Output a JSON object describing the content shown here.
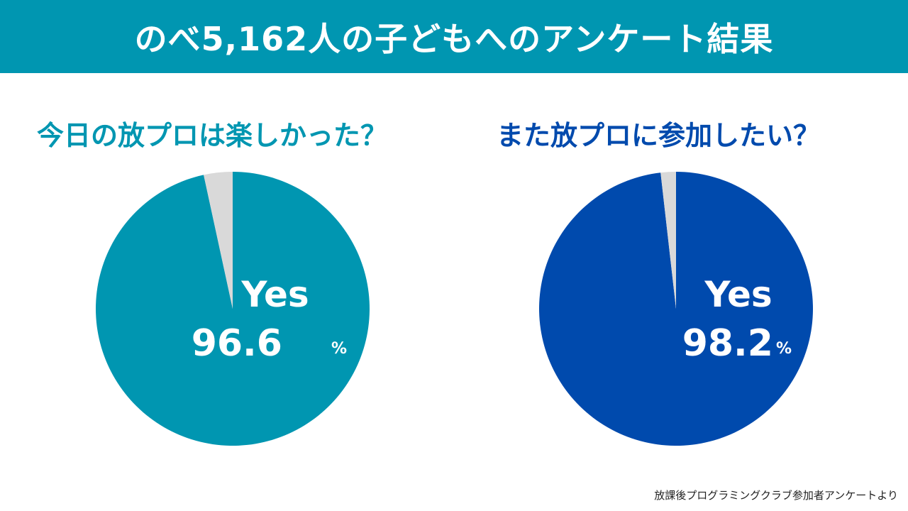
{
  "header": {
    "title": "のべ5,162人の子どもへのアンケート結果"
  },
  "footnote": "放課後プログラミングクラブ参加者アンケートより",
  "chart_data": [
    {
      "type": "pie",
      "title": "今日の放プロは楽しかった？",
      "slices": [
        {
          "label": "Yes",
          "value": 96.6,
          "color": "#0096b1"
        },
        {
          "label": "",
          "value": 3.4,
          "color": "#d9d9d9"
        }
      ],
      "annotation": {
        "label": "Yes",
        "value": "96.6",
        "unit": "%"
      },
      "title_color": "#0096b1"
    },
    {
      "type": "pie",
      "title": "また放プロに参加したい？",
      "slices": [
        {
          "label": "Yes",
          "value": 98.2,
          "color": "#004aad"
        },
        {
          "label": "",
          "value": 1.8,
          "color": "#d9d9d9"
        }
      ],
      "annotation": {
        "label": "Yes",
        "value": "98.2",
        "unit": "%"
      },
      "title_color": "#004aad"
    }
  ]
}
